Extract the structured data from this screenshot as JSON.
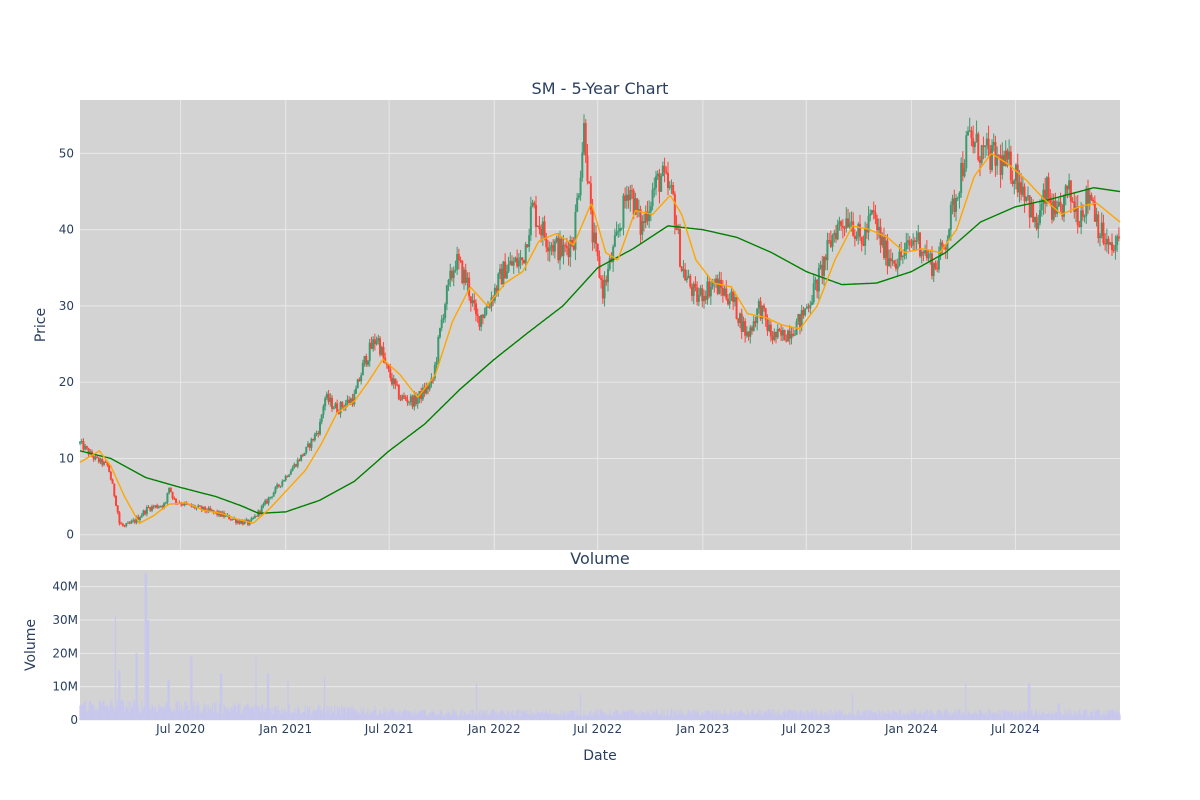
{
  "chart_data": [
    {
      "type": "candlestick",
      "title": "SM - 5-Year Chart",
      "ylabel": "Price",
      "ylim": [
        -2,
        57
      ],
      "yticks": [
        0,
        10,
        20,
        30,
        40,
        50
      ],
      "xlim": [
        "2020-01-07",
        "2024-12-31"
      ],
      "grid": true,
      "colors": {
        "increasing": "#3d9970",
        "decreasing": "#ff4136",
        "ma50": "#ffa500",
        "ma200": "#008000",
        "plot_bg": "#d3d3d3",
        "grid": "#e8e8e8"
      },
      "anchors": [
        [
          "2020-01-07",
          12.0
        ],
        [
          "2020-02-01",
          10.0
        ],
        [
          "2020-02-25",
          9.0
        ],
        [
          "2020-03-05",
          6.0
        ],
        [
          "2020-03-12",
          3.5
        ],
        [
          "2020-03-16",
          1.5
        ],
        [
          "2020-03-25",
          1.0
        ],
        [
          "2020-04-10",
          1.7
        ],
        [
          "2020-05-05",
          3.5
        ],
        [
          "2020-06-05",
          4.0
        ],
        [
          "2020-06-10",
          6.5
        ],
        [
          "2020-06-20",
          4.5
        ],
        [
          "2020-07-15",
          3.8
        ],
        [
          "2020-08-15",
          3.2
        ],
        [
          "2020-09-15",
          2.5
        ],
        [
          "2020-10-10",
          1.8
        ],
        [
          "2020-10-30",
          1.5
        ],
        [
          "2020-11-10",
          2.5
        ],
        [
          "2020-11-30",
          4.5
        ],
        [
          "2020-12-15",
          6.0
        ],
        [
          "2021-01-10",
          8.5
        ],
        [
          "2021-02-05",
          11.0
        ],
        [
          "2021-03-01",
          14.0
        ],
        [
          "2021-03-10",
          18.0
        ],
        [
          "2021-04-01",
          16.5
        ],
        [
          "2021-05-01",
          18.0
        ],
        [
          "2021-05-20",
          23.0
        ],
        [
          "2021-06-10",
          26.0
        ],
        [
          "2021-06-25",
          22.0
        ],
        [
          "2021-07-20",
          18.0
        ],
        [
          "2021-08-15",
          17.5
        ],
        [
          "2021-09-15",
          20.0
        ],
        [
          "2021-10-05",
          30.0
        ],
        [
          "2021-10-25",
          36.0
        ],
        [
          "2021-11-15",
          33.0
        ],
        [
          "2021-12-01",
          28.0
        ],
        [
          "2021-12-20",
          30.0
        ],
        [
          "2022-01-20",
          35.0
        ],
        [
          "2022-02-20",
          36.0
        ],
        [
          "2022-03-08",
          43.0
        ],
        [
          "2022-04-01",
          39.0
        ],
        [
          "2022-05-01",
          37.0
        ],
        [
          "2022-05-20",
          39.0
        ],
        [
          "2022-06-08",
          54.0
        ],
        [
          "2022-06-20",
          40.0
        ],
        [
          "2022-07-10",
          32.0
        ],
        [
          "2022-08-01",
          38.0
        ],
        [
          "2022-08-25",
          46.0
        ],
        [
          "2022-09-15",
          40.0
        ],
        [
          "2022-10-05",
          45.0
        ],
        [
          "2022-10-20",
          47.0
        ],
        [
          "2022-11-10",
          44.0
        ],
        [
          "2022-11-25",
          35.0
        ],
        [
          "2022-12-20",
          31.0
        ],
        [
          "2023-01-20",
          33.0
        ],
        [
          "2023-02-20",
          31.0
        ],
        [
          "2023-03-20",
          26.0
        ],
        [
          "2023-04-10",
          30.0
        ],
        [
          "2023-05-01",
          26.0
        ],
        [
          "2023-05-20",
          26.0
        ],
        [
          "2023-06-20",
          28.0
        ],
        [
          "2023-07-20",
          33.0
        ],
        [
          "2023-08-20",
          40.0
        ],
        [
          "2023-09-15",
          42.0
        ],
        [
          "2023-10-05",
          38.0
        ],
        [
          "2023-10-25",
          42.0
        ],
        [
          "2023-11-15",
          37.0
        ],
        [
          "2023-12-10",
          36.0
        ],
        [
          "2024-01-10",
          39.0
        ],
        [
          "2024-02-10",
          35.0
        ],
        [
          "2024-02-28",
          38.0
        ],
        [
          "2024-03-20",
          45.0
        ],
        [
          "2024-04-10",
          52.0
        ],
        [
          "2024-05-05",
          50.0
        ],
        [
          "2024-06-01",
          49.0
        ],
        [
          "2024-06-25",
          48.0
        ],
        [
          "2024-07-20",
          45.0
        ],
        [
          "2024-08-05",
          40.0
        ],
        [
          "2024-08-25",
          45.0
        ],
        [
          "2024-09-10",
          41.0
        ],
        [
          "2024-10-01",
          45.0
        ],
        [
          "2024-10-20",
          42.0
        ],
        [
          "2024-11-10",
          45.0
        ],
        [
          "2024-11-25",
          40.0
        ],
        [
          "2024-12-15",
          37.0
        ],
        [
          "2024-12-31",
          38.5
        ]
      ],
      "ma50": [
        [
          "2020-01-07",
          9.5
        ],
        [
          "2020-02-10",
          11.0
        ],
        [
          "2020-03-01",
          9.0
        ],
        [
          "2020-03-25",
          5.0
        ],
        [
          "2020-04-20",
          1.5
        ],
        [
          "2020-05-15",
          2.5
        ],
        [
          "2020-06-10",
          4.0
        ],
        [
          "2020-07-10",
          4.2
        ],
        [
          "2020-08-10",
          3.2
        ],
        [
          "2020-09-10",
          2.8
        ],
        [
          "2020-10-10",
          2.0
        ],
        [
          "2020-11-05",
          1.5
        ],
        [
          "2020-12-05",
          3.5
        ],
        [
          "2021-01-05",
          6.0
        ],
        [
          "2021-02-05",
          8.5
        ],
        [
          "2021-03-05",
          12.0
        ],
        [
          "2021-04-01",
          16.0
        ],
        [
          "2021-05-01",
          17.5
        ],
        [
          "2021-05-25",
          20.0
        ],
        [
          "2021-06-20",
          23.0
        ],
        [
          "2021-07-20",
          21.0
        ],
        [
          "2021-08-20",
          18.0
        ],
        [
          "2021-09-20",
          21.0
        ],
        [
          "2021-10-20",
          28.0
        ],
        [
          "2021-11-20",
          32.5
        ],
        [
          "2021-12-20",
          30.0
        ],
        [
          "2022-01-20",
          33.0
        ],
        [
          "2022-02-20",
          34.5
        ],
        [
          "2022-03-20",
          38.5
        ],
        [
          "2022-04-20",
          39.5
        ],
        [
          "2022-05-20",
          38.0
        ],
        [
          "2022-06-20",
          43.5
        ],
        [
          "2022-07-15",
          37.0
        ],
        [
          "2022-08-05",
          36.0
        ],
        [
          "2022-09-05",
          42.5
        ],
        [
          "2022-10-05",
          42.0
        ],
        [
          "2022-11-05",
          44.5
        ],
        [
          "2022-11-25",
          42.0
        ],
        [
          "2022-12-20",
          36.0
        ],
        [
          "2023-01-20",
          33.0
        ],
        [
          "2023-02-20",
          32.5
        ],
        [
          "2023-03-20",
          29.0
        ],
        [
          "2023-04-20",
          28.5
        ],
        [
          "2023-05-20",
          27.5
        ],
        [
          "2023-06-20",
          27.0
        ],
        [
          "2023-07-20",
          30.0
        ],
        [
          "2023-08-20",
          36.0
        ],
        [
          "2023-09-20",
          40.5
        ],
        [
          "2023-10-20",
          40.0
        ],
        [
          "2023-11-20",
          39.0
        ],
        [
          "2023-12-20",
          37.0
        ],
        [
          "2024-01-20",
          37.5
        ],
        [
          "2024-02-20",
          37.0
        ],
        [
          "2024-03-20",
          40.0
        ],
        [
          "2024-04-20",
          47.0
        ],
        [
          "2024-05-20",
          50.0
        ],
        [
          "2024-06-20",
          48.5
        ],
        [
          "2024-07-20",
          46.5
        ],
        [
          "2024-08-20",
          44.0
        ],
        [
          "2024-09-20",
          42.0
        ],
        [
          "2024-10-20",
          43.0
        ],
        [
          "2024-11-20",
          43.5
        ],
        [
          "2024-12-31",
          41.0
        ]
      ],
      "ma200": [
        [
          "2020-01-07",
          11.0
        ],
        [
          "2020-03-01",
          10.0
        ],
        [
          "2020-05-01",
          7.5
        ],
        [
          "2020-07-01",
          6.2
        ],
        [
          "2020-09-01",
          5.0
        ],
        [
          "2020-10-15",
          3.8
        ],
        [
          "2020-11-15",
          2.8
        ],
        [
          "2021-01-01",
          3.0
        ],
        [
          "2021-03-01",
          4.5
        ],
        [
          "2021-05-01",
          7.0
        ],
        [
          "2021-07-01",
          11.0
        ],
        [
          "2021-09-01",
          14.5
        ],
        [
          "2021-11-01",
          19.0
        ],
        [
          "2022-01-01",
          23.0
        ],
        [
          "2022-03-01",
          26.5
        ],
        [
          "2022-05-01",
          30.0
        ],
        [
          "2022-07-01",
          35.0
        ],
        [
          "2022-09-01",
          37.5
        ],
        [
          "2022-11-01",
          40.5
        ],
        [
          "2023-01-01",
          40.0
        ],
        [
          "2023-03-01",
          39.0
        ],
        [
          "2023-05-01",
          37.0
        ],
        [
          "2023-07-01",
          34.5
        ],
        [
          "2023-09-01",
          32.8
        ],
        [
          "2023-11-01",
          33.0
        ],
        [
          "2024-01-01",
          34.5
        ],
        [
          "2024-03-01",
          37.0
        ],
        [
          "2024-05-01",
          41.0
        ],
        [
          "2024-07-01",
          43.0
        ],
        [
          "2024-09-01",
          44.0
        ],
        [
          "2024-11-15",
          45.5
        ],
        [
          "2024-12-31",
          45.0
        ]
      ]
    },
    {
      "type": "bar",
      "title": "Volume",
      "ylabel": "Volume",
      "xlabel": "Date",
      "ylim": [
        0,
        45000000
      ],
      "yticks": [
        0,
        10000000,
        20000000,
        30000000,
        40000000
      ],
      "ytick_labels": [
        "0",
        "10M",
        "20M",
        "30M",
        "40M"
      ],
      "xticks": [
        "2020-07-01",
        "2021-01-01",
        "2021-07-01",
        "2022-01-01",
        "2022-07-01",
        "2023-01-01",
        "2023-07-01",
        "2024-01-01",
        "2024-07-01"
      ],
      "xtick_labels": [
        "Jul 2020",
        "Jan 2021",
        "Jul 2021",
        "Jan 2022",
        "Jul 2022",
        "Jan 2023",
        "Jul 2023",
        "Jan 2024",
        "Jul 2024"
      ],
      "color": "#c7c7ee",
      "spikes": [
        [
          "2020-03-09",
          31000000
        ],
        [
          "2020-03-16",
          15000000
        ],
        [
          "2020-04-15",
          20000000
        ],
        [
          "2020-05-01",
          44000000
        ],
        [
          "2020-05-05",
          30000000
        ],
        [
          "2020-06-10",
          12000000
        ],
        [
          "2020-07-20",
          19000000
        ],
        [
          "2020-09-10",
          14000000
        ],
        [
          "2020-11-10",
          19000000
        ],
        [
          "2020-12-01",
          14000000
        ],
        [
          "2021-01-05",
          12000000
        ],
        [
          "2021-03-10",
          13000000
        ],
        [
          "2021-12-01",
          11000000
        ],
        [
          "2022-06-01",
          8000000
        ],
        [
          "2023-09-20",
          8000000
        ],
        [
          "2024-04-05",
          11000000
        ],
        [
          "2024-07-25",
          11000000
        ],
        [
          "2024-09-15",
          5000000
        ]
      ]
    }
  ]
}
